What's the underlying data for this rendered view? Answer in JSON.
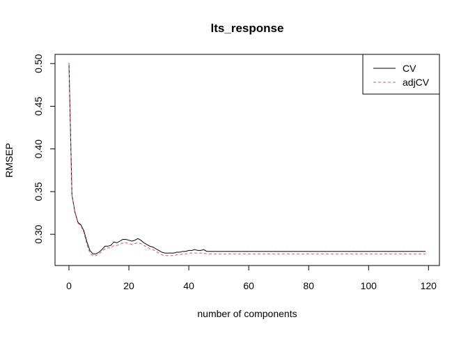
{
  "chart_data": {
    "type": "line",
    "title": "lts_response",
    "xlabel": "number of components",
    "ylabel": "RMSEP",
    "xlim": [
      0,
      119
    ],
    "ylim": [
      0.274,
      0.501
    ],
    "x_ticks": [
      0,
      20,
      40,
      60,
      80,
      100,
      120
    ],
    "x_tick_labels": [
      "0",
      "20",
      "40",
      "60",
      "80",
      "100",
      "120"
    ],
    "y_ticks": [
      0.3,
      0.35,
      0.4,
      0.45,
      0.5
    ],
    "y_tick_labels": [
      "0.30",
      "0.35",
      "0.40",
      "0.45",
      "0.50"
    ],
    "grid": false,
    "legend_position": "top-right",
    "legend": [
      {
        "label": "CV",
        "color": "#000000",
        "dash": "solid"
      },
      {
        "label": "adjCV",
        "color": "#DF536B",
        "dash": "dashed"
      }
    ],
    "series": [
      {
        "name": "CV",
        "color": "#000000",
        "points": [
          [
            0,
            0.501
          ],
          [
            1,
            0.346
          ],
          [
            2,
            0.326
          ],
          [
            3,
            0.314
          ],
          [
            4,
            0.311
          ],
          [
            5,
            0.304
          ],
          [
            6,
            0.291
          ],
          [
            7,
            0.281
          ],
          [
            8,
            0.277
          ],
          [
            9,
            0.277
          ],
          [
            10,
            0.279
          ],
          [
            11,
            0.282
          ],
          [
            12,
            0.286
          ],
          [
            13,
            0.286
          ],
          [
            14,
            0.287
          ],
          [
            15,
            0.291
          ],
          [
            16,
            0.29
          ],
          [
            17,
            0.292
          ],
          [
            18,
            0.294
          ],
          [
            19,
            0.294
          ],
          [
            20,
            0.293
          ],
          [
            21,
            0.292
          ],
          [
            22,
            0.293
          ],
          [
            23,
            0.295
          ],
          [
            24,
            0.293
          ],
          [
            25,
            0.29
          ],
          [
            26,
            0.288
          ],
          [
            27,
            0.286
          ],
          [
            28,
            0.285
          ],
          [
            29,
            0.283
          ],
          [
            30,
            0.281
          ],
          [
            31,
            0.279
          ],
          [
            32,
            0.278
          ],
          [
            33,
            0.278
          ],
          [
            34,
            0.278
          ],
          [
            35,
            0.278
          ],
          [
            36,
            0.279
          ],
          [
            37,
            0.279
          ],
          [
            38,
            0.28
          ],
          [
            39,
            0.28
          ],
          [
            40,
            0.281
          ],
          [
            41,
            0.281
          ],
          [
            42,
            0.282
          ],
          [
            43,
            0.281
          ],
          [
            44,
            0.281
          ],
          [
            45,
            0.282
          ],
          [
            46,
            0.28
          ],
          [
            50,
            0.28
          ],
          [
            60,
            0.28
          ],
          [
            70,
            0.28
          ],
          [
            80,
            0.28
          ],
          [
            90,
            0.28
          ],
          [
            100,
            0.28
          ],
          [
            110,
            0.28
          ],
          [
            119,
            0.28
          ]
        ]
      },
      {
        "name": "adjCV",
        "color": "#DF536B",
        "points": [
          [
            0,
            0.501
          ],
          [
            1,
            0.345
          ],
          [
            2,
            0.325
          ],
          [
            3,
            0.313
          ],
          [
            4,
            0.31
          ],
          [
            5,
            0.302
          ],
          [
            6,
            0.288
          ],
          [
            7,
            0.278
          ],
          [
            8,
            0.275
          ],
          [
            9,
            0.275
          ],
          [
            10,
            0.277
          ],
          [
            11,
            0.28
          ],
          [
            12,
            0.283
          ],
          [
            13,
            0.284
          ],
          [
            14,
            0.284
          ],
          [
            15,
            0.287
          ],
          [
            16,
            0.287
          ],
          [
            17,
            0.288
          ],
          [
            18,
            0.29
          ],
          [
            19,
            0.29
          ],
          [
            20,
            0.289
          ],
          [
            21,
            0.288
          ],
          [
            22,
            0.289
          ],
          [
            23,
            0.29
          ],
          [
            24,
            0.289
          ],
          [
            25,
            0.287
          ],
          [
            26,
            0.285
          ],
          [
            27,
            0.283
          ],
          [
            28,
            0.282
          ],
          [
            29,
            0.28
          ],
          [
            30,
            0.278
          ],
          [
            31,
            0.276
          ],
          [
            32,
            0.275
          ],
          [
            33,
            0.275
          ],
          [
            34,
            0.275
          ],
          [
            35,
            0.275
          ],
          [
            36,
            0.276
          ],
          [
            37,
            0.276
          ],
          [
            38,
            0.277
          ],
          [
            39,
            0.277
          ],
          [
            40,
            0.278
          ],
          [
            41,
            0.278
          ],
          [
            42,
            0.278
          ],
          [
            43,
            0.278
          ],
          [
            44,
            0.278
          ],
          [
            45,
            0.278
          ],
          [
            46,
            0.277
          ],
          [
            50,
            0.277
          ],
          [
            60,
            0.277
          ],
          [
            70,
            0.277
          ],
          [
            80,
            0.277
          ],
          [
            90,
            0.277
          ],
          [
            100,
            0.277
          ],
          [
            110,
            0.277
          ],
          [
            119,
            0.277
          ]
        ]
      }
    ]
  }
}
